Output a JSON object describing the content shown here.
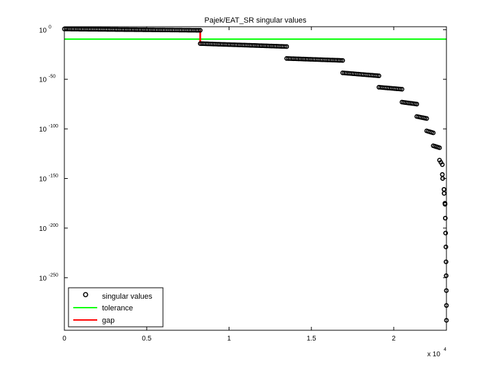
{
  "chart_data": {
    "type": "scatter",
    "title": "Pajek/EAT_SR singular values",
    "xlabel": "",
    "ylabel": "",
    "x_exponent_label": "x 10",
    "x_exponent_power": "4",
    "xlim": [
      0,
      23200
    ],
    "ylim_log10": [
      -303,
      3
    ],
    "y_scale": "log",
    "x_ticks": [
      {
        "value": 0,
        "label": "0"
      },
      {
        "value": 5000,
        "label": "0.5"
      },
      {
        "value": 10000,
        "label": "1"
      },
      {
        "value": 15000,
        "label": "1.5"
      },
      {
        "value": 20000,
        "label": "2"
      }
    ],
    "y_ticks": [
      {
        "exp": 0,
        "base": "10",
        "power": "0"
      },
      {
        "exp": -50,
        "base": "10",
        "power": "-50"
      },
      {
        "exp": -100,
        "base": "10",
        "power": "-100"
      },
      {
        "exp": -150,
        "base": "10",
        "power": "-150"
      },
      {
        "exp": -200,
        "base": "10",
        "power": "-200"
      },
      {
        "exp": -250,
        "base": "10",
        "power": "-250"
      }
    ],
    "legend_position": "bottom-left",
    "colors": {
      "singular_values": "#000000",
      "tolerance": "#00ff00",
      "gap": "#ff0000"
    },
    "series": [
      {
        "name": "singular values",
        "kind": "markers",
        "segments": [
          {
            "x": [
              0,
              8250
            ],
            "log10_y": [
              0.7,
              -0.6
            ]
          },
          {
            "x": [
              8250,
              13500
            ],
            "log10_y": [
              -14,
              -17
            ]
          },
          {
            "x": [
              13500,
              16900
            ],
            "log10_y": [
              -29,
              -31
            ]
          },
          {
            "x": [
              16900,
              19100
            ],
            "log10_y": [
              -43.5,
              -46.5
            ]
          },
          {
            "x": [
              19100,
              20500
            ],
            "log10_y": [
              -58,
              -60
            ]
          },
          {
            "x": [
              20500,
              21400
            ],
            "log10_y": [
              -73,
              -75
            ]
          },
          {
            "x": [
              21400,
              22000
            ],
            "log10_y": [
              -87.5,
              -89.5
            ]
          },
          {
            "x": [
              22000,
              22400
            ],
            "log10_y": [
              -102,
              -104
            ]
          },
          {
            "x": [
              22400,
              22780
            ],
            "log10_y": [
              -117,
              -119
            ]
          },
          {
            "x": [
              22780,
              22950
            ],
            "log10_y": [
              -131.5,
              -136
            ]
          }
        ],
        "points": [
          {
            "x": 22950,
            "log10_y": -146
          },
          {
            "x": 22970,
            "log10_y": -150
          },
          {
            "x": 23050,
            "log10_y": -161
          },
          {
            "x": 23060,
            "log10_y": -165
          },
          {
            "x": 23110,
            "log10_y": -175
          },
          {
            "x": 23115,
            "log10_y": -176
          },
          {
            "x": 23130,
            "log10_y": -190
          },
          {
            "x": 23150,
            "log10_y": -205
          },
          {
            "x": 23165,
            "log10_y": -219
          },
          {
            "x": 23175,
            "log10_y": -234
          },
          {
            "x": 23185,
            "log10_y": -248
          },
          {
            "x": 23195,
            "log10_y": -263
          },
          {
            "x": 23200,
            "log10_y": -278
          },
          {
            "x": 23200,
            "log10_y": -293
          }
        ]
      },
      {
        "name": "tolerance",
        "kind": "line",
        "log10_y": -9.5
      },
      {
        "name": "gap",
        "kind": "line",
        "x": 8250,
        "log10_y": [
          -0.6,
          -14
        ]
      }
    ]
  }
}
